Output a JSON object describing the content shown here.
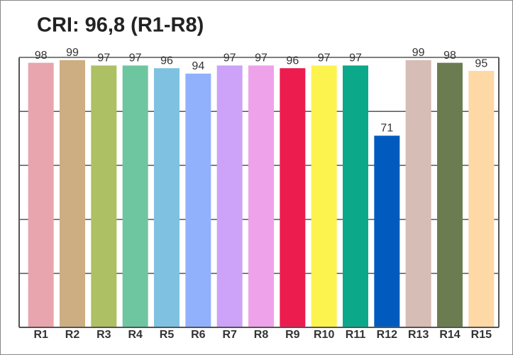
{
  "chart_data": {
    "type": "bar",
    "title": "CRI: 96,8 (R1-R8)",
    "categories": [
      "R1",
      "R2",
      "R3",
      "R4",
      "R5",
      "R6",
      "R7",
      "R8",
      "R9",
      "R10",
      "R11",
      "R12",
      "R13",
      "R14",
      "R15"
    ],
    "values": [
      98,
      99,
      97,
      97,
      96,
      94,
      97,
      97,
      96,
      97,
      97,
      71,
      99,
      98,
      95
    ],
    "colors": [
      "#e8a5ad",
      "#cdae82",
      "#adc063",
      "#6ec6a0",
      "#7fc1e0",
      "#91b1fd",
      "#cca3f8",
      "#eea2ea",
      "#ec1c4f",
      "#fdf34f",
      "#0ba98a",
      "#015bbf",
      "#d6bdb6",
      "#6b7d50",
      "#fed8a5"
    ],
    "ylim": [
      0,
      100
    ],
    "yticks": [
      0,
      20,
      40,
      60,
      80,
      100
    ],
    "grid": true
  }
}
